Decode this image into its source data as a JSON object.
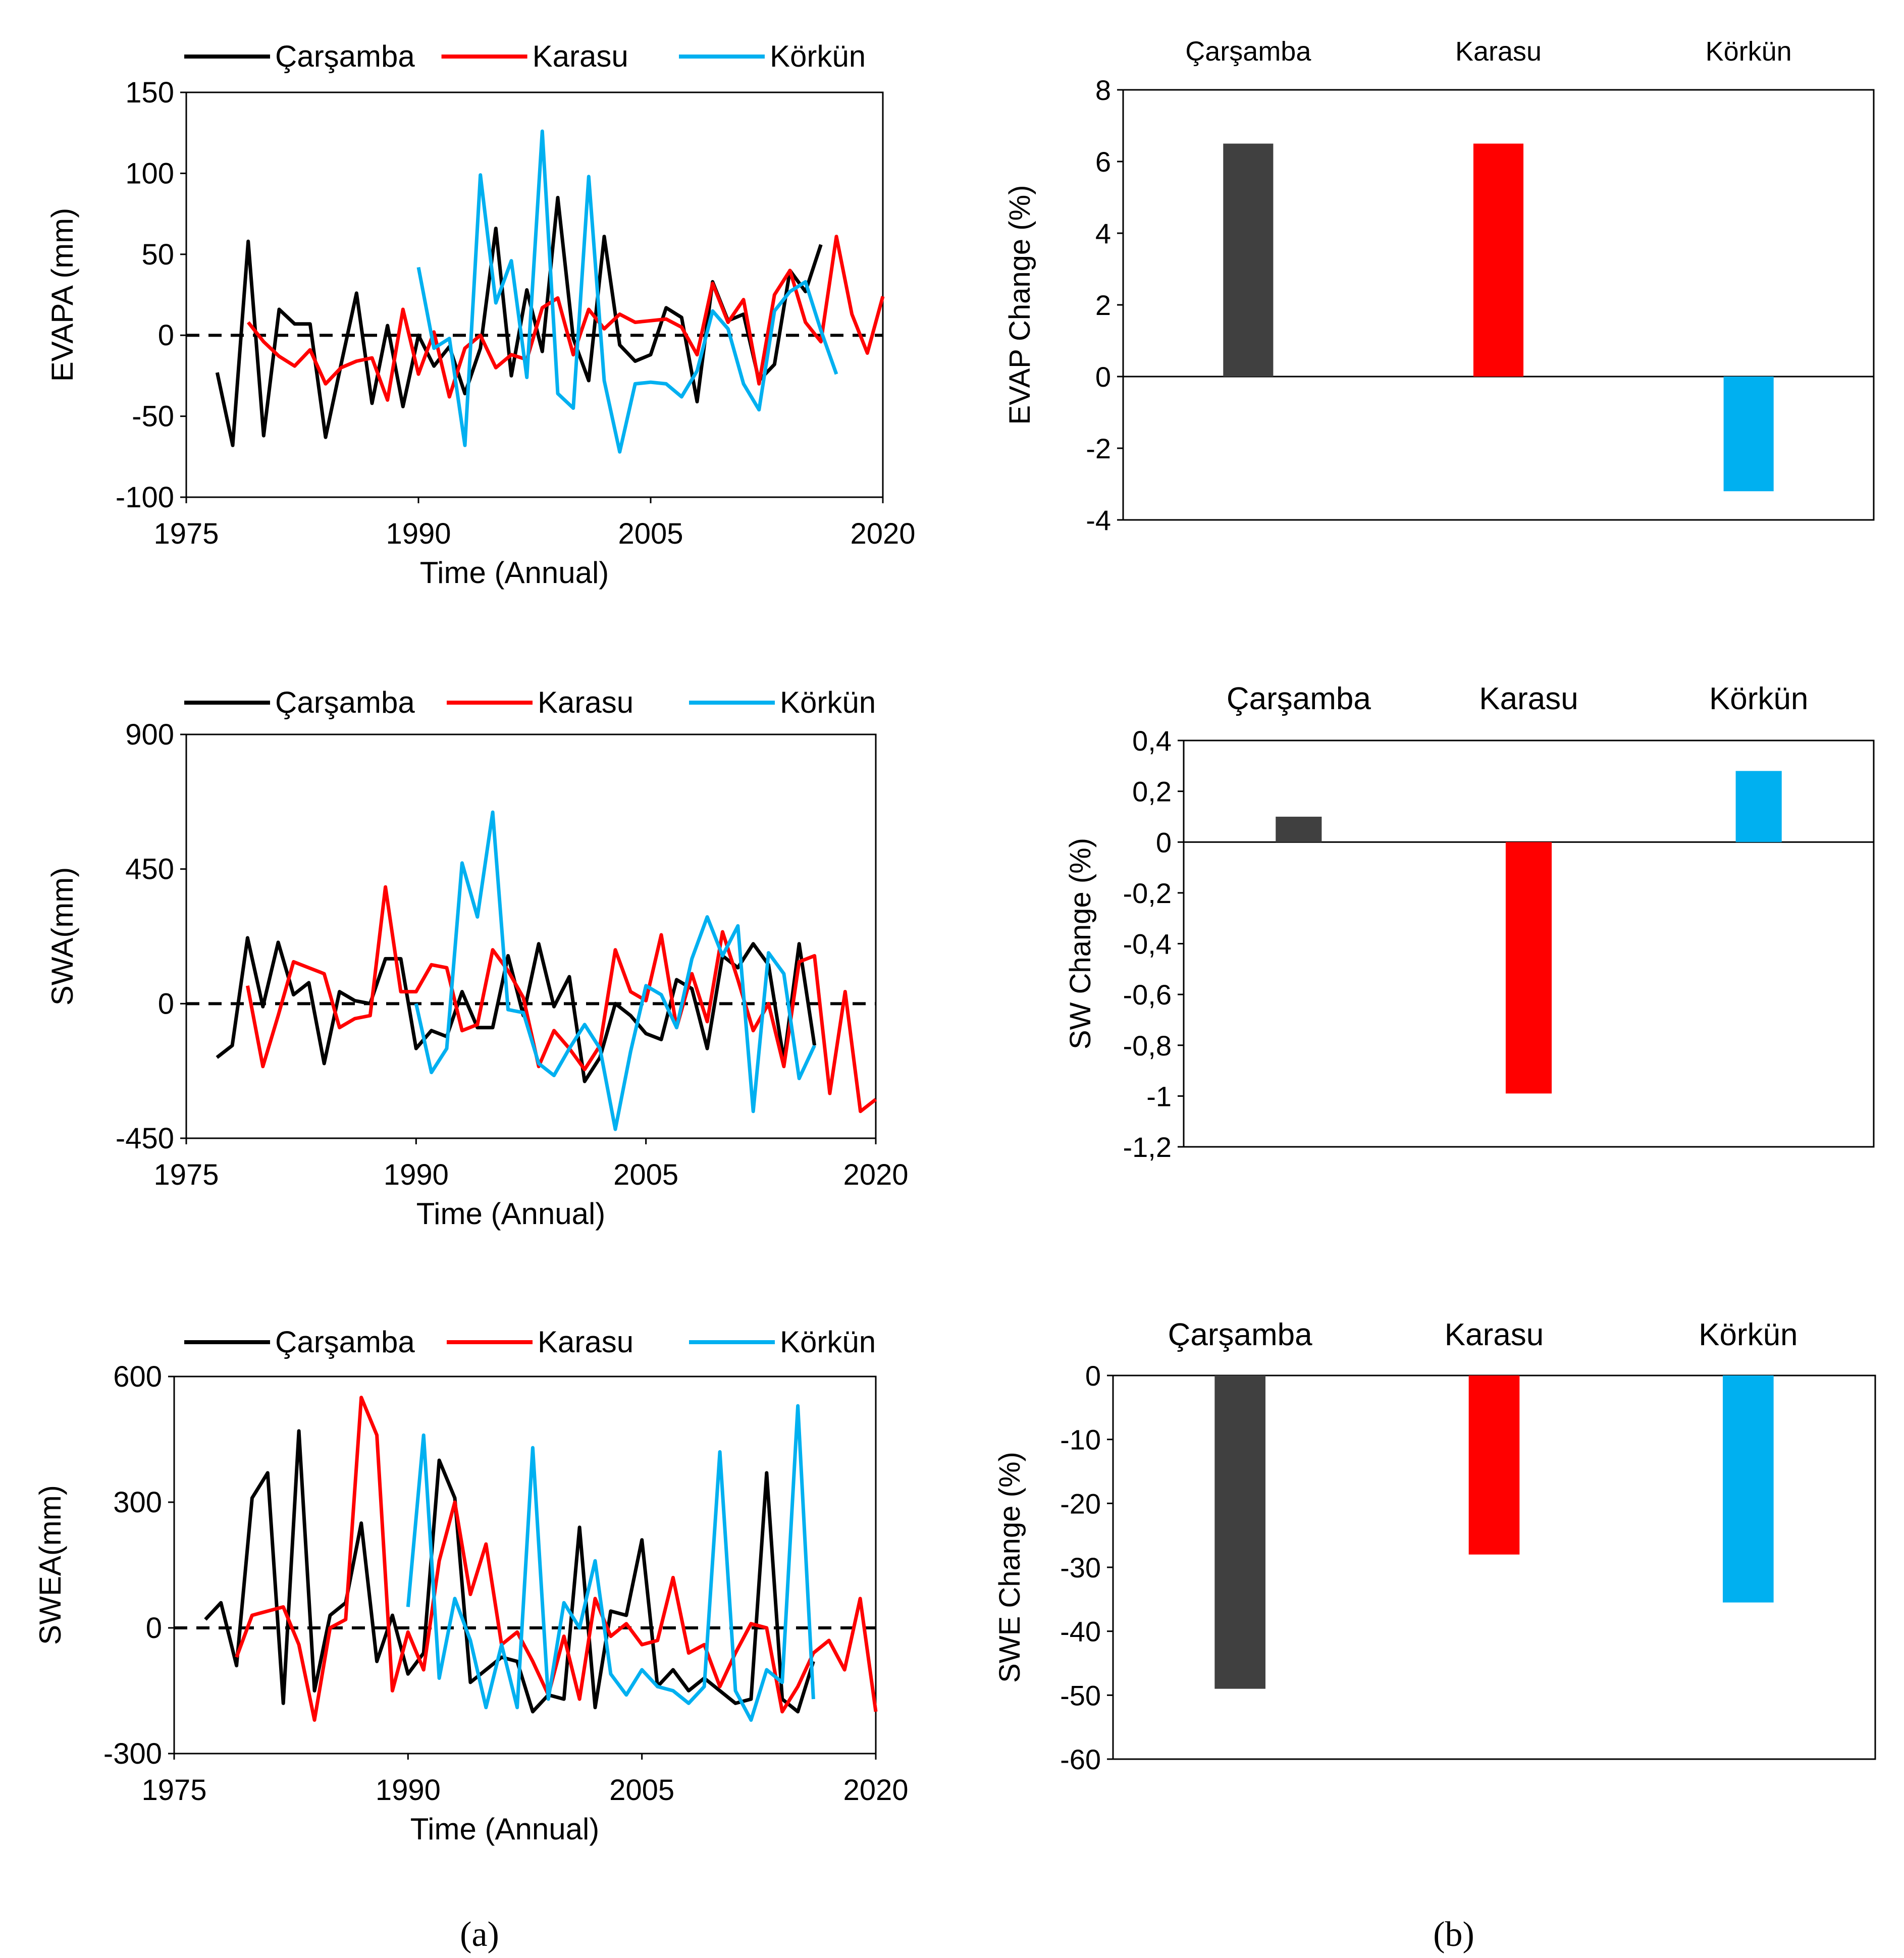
{
  "colors": {
    "Çarşamba": "#000000",
    "Karasu": "#ff0000",
    "Körkün": "#00b0f0",
    "bar_Çarşamba": "#404040"
  },
  "captions": {
    "a": "(a)",
    "b": "(b)"
  },
  "chart_data": [
    {
      "id": "line1",
      "type": "line",
      "xlabel": "Time  (Annual)",
      "ylabel": "EVAPA (mm)",
      "xlim": [
        1975,
        2020
      ],
      "ylim": [
        -100,
        150
      ],
      "xticks": [
        "1975",
        "1990",
        "2005",
        "2020"
      ],
      "yticks": [
        "150",
        "100",
        "50",
        "0",
        "-50",
        "-100"
      ],
      "legend": [
        "Çarşamba",
        "Karasu",
        "Körkün"
      ],
      "series": [
        {
          "name": "Çarşamba",
          "x": [
            1977,
            1978,
            1979,
            1980,
            1981,
            1982,
            1983,
            1984,
            1985,
            1986,
            1987,
            1988,
            1989,
            1990,
            1991,
            1992,
            1993,
            1994,
            1995,
            1996,
            1997,
            1998,
            1999,
            2000,
            2001,
            2002,
            2003,
            2004,
            2005,
            2006,
            2007,
            2008,
            2009,
            2010,
            2011,
            2012,
            2013,
            2014,
            2015,
            2016
          ],
          "values": [
            -23,
            -68,
            58,
            -62,
            16,
            7,
            7,
            -63,
            -18,
            26,
            -42,
            6,
            -44,
            0,
            -19,
            -7,
            -36,
            -8,
            66,
            -25,
            28,
            -10,
            85,
            -2,
            -28,
            61,
            -6,
            -16,
            -12,
            17,
            11,
            -41,
            33,
            9,
            13,
            -28,
            -18,
            40,
            27,
            56
          ]
        },
        {
          "name": "Karasu",
          "x": [
            1979,
            1980,
            1981,
            1982,
            1983,
            1984,
            1985,
            1986,
            1987,
            1988,
            1989,
            1990,
            1991,
            1992,
            1993,
            1994,
            1995,
            1996,
            1997,
            1998,
            1999,
            2000,
            2001,
            2002,
            2003,
            2004,
            2005,
            2006,
            2007,
            2008,
            2009,
            2010,
            2011,
            2012,
            2013,
            2014,
            2015,
            2016,
            2017,
            2018,
            2019,
            2020
          ],
          "values": [
            8,
            -4,
            -13,
            -19,
            -9,
            -30,
            -20,
            -16,
            -14,
            -40,
            16,
            -24,
            2,
            -38,
            -8,
            0,
            -20,
            -12,
            -15,
            17,
            23,
            -12,
            16,
            4,
            13,
            8,
            9,
            10,
            5,
            -12,
            32,
            8,
            22,
            -30,
            25,
            40,
            8,
            -4,
            61,
            13,
            -11,
            24
          ]
        },
        {
          "name": "Körkün",
          "x": [
            1990,
            1991,
            1992,
            1993,
            1994,
            1995,
            1996,
            1997,
            1998,
            1999,
            2000,
            2001,
            2002,
            2003,
            2004,
            2005,
            2006,
            2007,
            2008,
            2009,
            2010,
            2011,
            2012,
            2013,
            2014,
            2015,
            2016,
            2017
          ],
          "values": [
            42,
            -8,
            -2,
            -68,
            99,
            20,
            46,
            -26,
            126,
            -36,
            -45,
            98,
            -28,
            -72,
            -30,
            -29,
            -30,
            -38,
            -22,
            15,
            4,
            -30,
            -46,
            15,
            27,
            33,
            3,
            -24
          ]
        }
      ]
    },
    {
      "id": "line2",
      "type": "line",
      "xlabel": "Time  (Annual)",
      "ylabel": "SWA(mm)",
      "xlim": [
        1975,
        2020
      ],
      "ylim": [
        -450,
        900
      ],
      "xticks": [
        "1975",
        "1990",
        "2005",
        "2020"
      ],
      "yticks": [
        "900",
        "450",
        "0",
        "-450"
      ],
      "legend": [
        "Çarşamba",
        "Karasu",
        "Körkün"
      ],
      "series": [
        {
          "name": "Çarşamba",
          "x": [
            1977,
            1978,
            1979,
            1980,
            1981,
            1982,
            1983,
            1984,
            1985,
            1986,
            1987,
            1988,
            1989,
            1990,
            1991,
            1992,
            1993,
            1994,
            1995,
            1996,
            1997,
            1998,
            1999,
            2000,
            2001,
            2002,
            2003,
            2004,
            2005,
            2006,
            2007,
            2008,
            2009,
            2010,
            2011,
            2012,
            2013,
            2014,
            2015,
            2016
          ],
          "values": [
            -180,
            -140,
            220,
            -10,
            205,
            30,
            70,
            -200,
            40,
            10,
            0,
            150,
            150,
            -150,
            -90,
            -110,
            40,
            -80,
            -80,
            160,
            -40,
            200,
            -10,
            90,
            -260,
            -180,
            0,
            -40,
            -100,
            -120,
            80,
            50,
            -150,
            160,
            120,
            200,
            130,
            -190,
            200,
            -140
          ]
        },
        {
          "name": "Karasu",
          "x": [
            1979,
            1980,
            1981,
            1982,
            1983,
            1984,
            1985,
            1986,
            1987,
            1988,
            1989,
            1990,
            1991,
            1992,
            1993,
            1994,
            1995,
            1996,
            1997,
            1998,
            1999,
            2000,
            2001,
            2002,
            2003,
            2004,
            2005,
            2006,
            2007,
            2008,
            2009,
            2010,
            2011,
            2012,
            2013,
            2014,
            2015,
            2016,
            2017,
            2018,
            2019,
            2020
          ],
          "values": [
            60,
            -210,
            -40,
            140,
            120,
            100,
            -80,
            -50,
            -40,
            390,
            40,
            40,
            130,
            120,
            -90,
            -70,
            180,
            110,
            20,
            -210,
            -90,
            -150,
            -220,
            -140,
            180,
            40,
            10,
            230,
            -80,
            100,
            -60,
            240,
            80,
            -90,
            0,
            -210,
            140,
            160,
            -300,
            40,
            -360,
            -320
          ]
        },
        {
          "name": "Körkün",
          "x": [
            1990,
            1991,
            1992,
            1993,
            1994,
            1995,
            1996,
            1997,
            1998,
            1999,
            2000,
            2001,
            2002,
            2003,
            2004,
            2005,
            2006,
            2007,
            2008,
            2009,
            2010,
            2011,
            2012,
            2013,
            2014,
            2015,
            2016
          ],
          "values": [
            0,
            -230,
            -150,
            470,
            290,
            640,
            -20,
            -30,
            -200,
            -240,
            -150,
            -70,
            -150,
            -420,
            -160,
            60,
            30,
            -80,
            150,
            290,
            160,
            260,
            -360,
            170,
            100,
            -250,
            -140
          ]
        }
      ]
    },
    {
      "id": "line3",
      "type": "line",
      "xlabel": "Time  (Annual)",
      "ylabel": "SWEA(mm)",
      "xlim": [
        1975,
        2020
      ],
      "ylim": [
        -300,
        600
      ],
      "xticks": [
        "1975",
        "1990",
        "2005",
        "2020"
      ],
      "yticks": [
        "600",
        "300",
        "0",
        "-300"
      ],
      "legend": [
        "Çarşamba",
        "Karasu",
        "Körkün"
      ],
      "series": [
        {
          "name": "Çarşamba",
          "x": [
            1977,
            1978,
            1979,
            1980,
            1981,
            1982,
            1983,
            1984,
            1985,
            1986,
            1987,
            1988,
            1989,
            1990,
            1991,
            1992,
            1993,
            1994,
            1995,
            1996,
            1997,
            1998,
            1999,
            2000,
            2001,
            2002,
            2003,
            2004,
            2005,
            2006,
            2007,
            2008,
            2009,
            2010,
            2011,
            2012,
            2013,
            2014,
            2015,
            2016
          ],
          "values": [
            20,
            60,
            -90,
            310,
            370,
            -180,
            470,
            -150,
            30,
            60,
            250,
            -80,
            30,
            -110,
            -60,
            400,
            310,
            -130,
            -100,
            -70,
            -80,
            -200,
            -160,
            -170,
            240,
            -190,
            40,
            30,
            210,
            -140,
            -100,
            -150,
            -120,
            -150,
            -180,
            -170,
            370,
            -170,
            -200,
            -80
          ]
        },
        {
          "name": "Karasu",
          "x": [
            1979,
            1980,
            1981,
            1982,
            1983,
            1984,
            1985,
            1986,
            1987,
            1988,
            1989,
            1990,
            1991,
            1992,
            1993,
            1994,
            1995,
            1996,
            1997,
            1998,
            1999,
            2000,
            2001,
            2002,
            2003,
            2004,
            2005,
            2006,
            2007,
            2008,
            2009,
            2010,
            2011,
            2012,
            2013,
            2014,
            2015,
            2016,
            2017,
            2018,
            2019,
            2020
          ],
          "values": [
            -70,
            30,
            40,
            50,
            -40,
            -220,
            0,
            20,
            550,
            460,
            -150,
            -10,
            -100,
            160,
            300,
            80,
            200,
            -40,
            -10,
            -80,
            -160,
            -20,
            -170,
            70,
            -20,
            10,
            -40,
            -30,
            120,
            -60,
            -40,
            -140,
            -60,
            10,
            0,
            -200,
            -140,
            -60,
            -30,
            -100,
            70,
            -200
          ]
        },
        {
          "name": "Körkün",
          "x": [
            1990,
            1991,
            1992,
            1993,
            1994,
            1995,
            1996,
            1997,
            1998,
            1999,
            2000,
            2001,
            2002,
            2003,
            2004,
            2005,
            2006,
            2007,
            2008,
            2009,
            2010,
            2011,
            2012,
            2013,
            2014,
            2015,
            2016
          ],
          "values": [
            50,
            460,
            -120,
            70,
            -30,
            -190,
            -40,
            -190,
            430,
            -170,
            60,
            0,
            160,
            -110,
            -160,
            -100,
            -140,
            -150,
            -180,
            -140,
            420,
            -150,
            -220,
            -100,
            -130,
            530,
            -170
          ]
        }
      ]
    },
    {
      "id": "bar1",
      "type": "bar",
      "ylabel": "EVAP Change  (%)",
      "categories": [
        "Çarşamba",
        "Karasu",
        "Körkün"
      ],
      "values": [
        6.5,
        6.5,
        -3.2
      ],
      "ylim": [
        -4,
        8
      ],
      "yticks": [
        "8",
        "6",
        "4",
        "2",
        "0",
        "-2",
        "-4"
      ]
    },
    {
      "id": "bar2",
      "type": "bar",
      "ylabel": "SW Change  (%)",
      "categories": [
        "Çarşamba",
        "Karasu",
        "Körkün"
      ],
      "values": [
        0.1,
        -0.99,
        0.28
      ],
      "ylim": [
        -1.2,
        0.4
      ],
      "yticks": [
        "0,4",
        "0,2",
        "0",
        "-0,2",
        "-0,4",
        "-0,6",
        "-0,8",
        "-1",
        "-1,2"
      ]
    },
    {
      "id": "bar3",
      "type": "bar",
      "ylabel": "SWE Change  (%)",
      "categories": [
        "Çarşamba",
        "Karasu",
        "Körkün"
      ],
      "values": [
        -49,
        -28,
        -35.5
      ],
      "ylim": [
        -60,
        0
      ],
      "yticks": [
        "0",
        "-10",
        "-20",
        "-30",
        "-40",
        "-50",
        "-60"
      ]
    }
  ]
}
